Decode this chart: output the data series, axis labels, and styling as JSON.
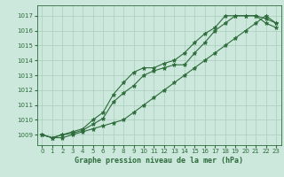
{
  "title": "Graphe pression niveau de la mer (hPa)",
  "bg_color": "#cce8dc",
  "grid_color": "#aaccbb",
  "line_color": "#2d6b3a",
  "xlim": [
    -0.5,
    23.5
  ],
  "ylim": [
    1008.3,
    1017.7
  ],
  "xticks": [
    0,
    1,
    2,
    3,
    4,
    5,
    6,
    7,
    8,
    9,
    10,
    11,
    12,
    13,
    14,
    15,
    16,
    17,
    18,
    19,
    20,
    21,
    22,
    23
  ],
  "yticks": [
    1009,
    1010,
    1011,
    1012,
    1013,
    1014,
    1015,
    1016,
    1017
  ],
  "series": [
    [
      1009.0,
      1008.8,
      1008.8,
      1009.0,
      1009.2,
      1009.4,
      1009.6,
      1009.8,
      1010.0,
      1010.5,
      1011.0,
      1011.5,
      1012.0,
      1012.5,
      1013.0,
      1013.5,
      1014.0,
      1014.5,
      1015.0,
      1015.5,
      1016.0,
      1016.5,
      1017.0,
      1016.5
    ],
    [
      1009.0,
      1008.8,
      1009.0,
      1009.1,
      1009.3,
      1009.7,
      1010.1,
      1011.2,
      1011.8,
      1012.3,
      1013.0,
      1013.3,
      1013.5,
      1013.7,
      1013.7,
      1014.5,
      1015.2,
      1016.0,
      1016.5,
      1017.0,
      1017.0,
      1017.0,
      1016.8,
      1016.5
    ],
    [
      1009.0,
      1008.8,
      1009.0,
      1009.2,
      1009.4,
      1010.0,
      1010.5,
      1011.7,
      1012.5,
      1013.2,
      1013.5,
      1013.5,
      1013.8,
      1014.0,
      1014.5,
      1015.2,
      1015.8,
      1016.2,
      1017.0,
      1017.0,
      1017.0,
      1017.0,
      1016.5,
      1016.2
    ]
  ]
}
